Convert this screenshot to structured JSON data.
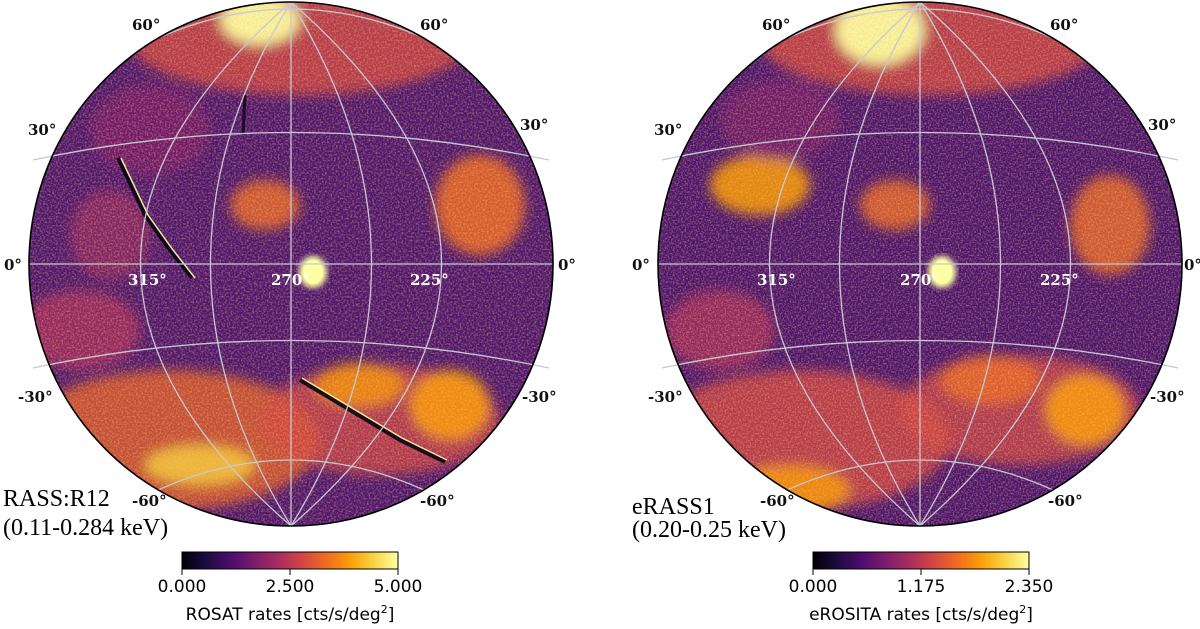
{
  "panels": [
    {
      "id": "left",
      "title_line1": "RASS:R12",
      "title_line2": "(0.11-0.284 keV)",
      "colorbar": {
        "ticks": [
          "0.000",
          "2.500",
          "5.000"
        ],
        "label_prefix": "ROSAT rates [cts/s/deg",
        "label_sup": "2",
        "label_suffix": "]"
      },
      "grid_labels": {
        "lat_left": [
          "60°",
          "30°",
          "0°",
          "-30°",
          "-60°"
        ],
        "lat_right": [
          "60°",
          "30°",
          "0°",
          "-30°",
          "-60°"
        ],
        "lon": [
          "315°",
          "270°",
          "225°"
        ]
      }
    },
    {
      "id": "right",
      "title_line1": "eRASS1",
      "title_line2": "(0.20-0.25 keV)",
      "colorbar": {
        "ticks": [
          "0.000",
          "1.175",
          "2.350"
        ],
        "label_prefix": "eROSITA rates [cts/s/deg",
        "label_sup": "2",
        "label_suffix": "]"
      },
      "grid_labels": {
        "lat_left": [
          "60°",
          "30°",
          "0°",
          "-30°",
          "-60°"
        ],
        "lat_right": [
          "60°",
          "30°",
          "0°",
          "-30°",
          "-60°"
        ],
        "lon": [
          "315°",
          "270°",
          "225°"
        ]
      }
    }
  ],
  "colors": {
    "cmap": [
      "#000004",
      "#1b0c41",
      "#4a0c6b",
      "#781c6d",
      "#a52c60",
      "#cf4446",
      "#ed6925",
      "#fb9b06",
      "#f7d13d",
      "#fcffa4"
    ],
    "base": "#4d1670",
    "grid": "#c8c8d2"
  }
}
